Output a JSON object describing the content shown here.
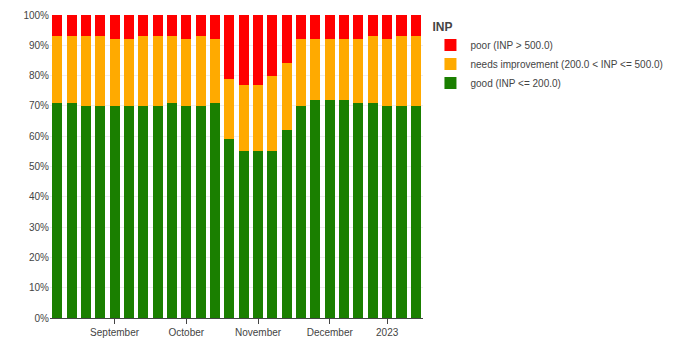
{
  "chart_data": {
    "type": "bar",
    "title": "INP",
    "stacked": true,
    "grid": true,
    "legend": "right",
    "categories": [
      null,
      null,
      null,
      null,
      "September",
      null,
      null,
      null,
      null,
      "October",
      null,
      null,
      null,
      null,
      "November",
      null,
      null,
      null,
      null,
      "December",
      null,
      null,
      null,
      "2023",
      null,
      null
    ],
    "series": [
      {
        "name": "good (INP <= 200.0)",
        "color": "#1a7f00",
        "values": [
          71,
          71,
          70,
          70,
          70,
          70,
          70,
          70,
          71,
          70,
          70,
          71,
          59,
          55,
          55,
          55,
          62,
          70,
          72,
          72,
          72,
          71,
          71,
          70,
          70,
          70
        ]
      },
      {
        "name": "needs improvement (200.0 < INP <= 500.0)",
        "color": "#ffaa00",
        "values": [
          22,
          22,
          23,
          23,
          22,
          22,
          23,
          23,
          22,
          22,
          23,
          21,
          20,
          22,
          22,
          25,
          22,
          22,
          20,
          20,
          20,
          21,
          22,
          22,
          23,
          23
        ]
      },
      {
        "name": "poor (INP > 500.0)",
        "color": "#ff0000",
        "values": [
          7,
          7,
          7,
          7,
          8,
          8,
          7,
          7,
          7,
          8,
          7,
          8,
          21,
          23,
          23,
          20,
          16,
          8,
          8,
          8,
          8,
          8,
          7,
          8,
          7,
          7
        ]
      }
    ],
    "ylim": [
      0,
      100
    ],
    "yticks": [
      {
        "value": 0,
        "label": "0%"
      },
      {
        "value": 10,
        "label": "10%"
      },
      {
        "value": 20,
        "label": "20%"
      },
      {
        "value": 30,
        "label": "30%"
      },
      {
        "value": 40,
        "label": "40%"
      },
      {
        "value": 50,
        "label": "50%"
      },
      {
        "value": 60,
        "label": "60%"
      },
      {
        "value": 70,
        "label": "70%"
      },
      {
        "value": 80,
        "label": "80%"
      },
      {
        "value": 90,
        "label": "90%"
      },
      {
        "value": 100,
        "label": "100%"
      }
    ]
  }
}
